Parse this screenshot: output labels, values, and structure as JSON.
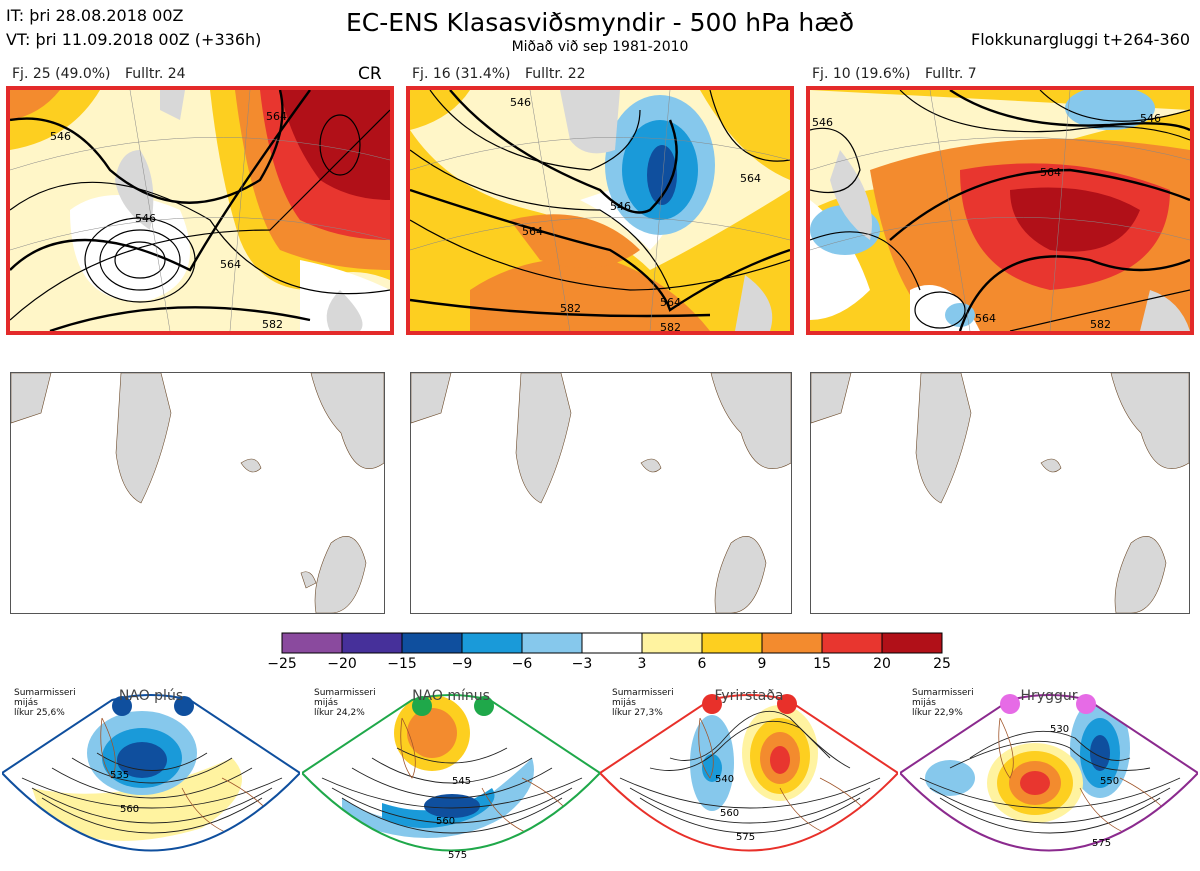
{
  "header": {
    "it": "IT: þri 28.08.2018 00Z",
    "vt": "VT: þri 11.09.2018 00Z  (+336h)",
    "title": "EC-ENS Klasasviðsmyndir - 500 hPa hæð",
    "subtitle": "Miðað við sep 1981-2010",
    "window": "Flokkunargluggi t+264-360"
  },
  "clusters": [
    {
      "fj": "Fj. 25 (49.0%)",
      "rep": "Fulltr. 24",
      "regime": "CR",
      "contours": [
        "546",
        "564",
        "546",
        "564",
        "582"
      ]
    },
    {
      "fj": "Fj. 16 (31.4%)",
      "rep": "Fulltr. 22",
      "regime": "",
      "contours": [
        "546",
        "564",
        "564",
        "582",
        "582",
        "546",
        "564"
      ]
    },
    {
      "fj": "Fj. 10 (19.6%)",
      "rep": "Fulltr. 7",
      "regime": "",
      "contours": [
        "546",
        "564",
        "546",
        "564",
        "582"
      ]
    }
  ],
  "colorbar": {
    "ticks": [
      "−25",
      "−20",
      "−15",
      "−9",
      "−6",
      "−3",
      "3",
      "6",
      "9",
      "15",
      "20",
      "25"
    ],
    "colors": [
      "#8a4a9e",
      "#46309a",
      "#0f4f9e",
      "#1a9ad9",
      "#86c8ec",
      "#ffffff",
      "#fff3a0",
      "#fdcf20",
      "#f38b2e",
      "#e8362f",
      "#b11018"
    ]
  },
  "regimes": [
    {
      "name": "NAO plús",
      "prob": [
        "Sumarmisseri",
        "mijás",
        "líkur 25,6%"
      ],
      "color": "#0f4f9e",
      "contours": [
        "535",
        "560"
      ]
    },
    {
      "name": "NAO mínus",
      "prob": [
        "Sumarmisseri",
        "mijás",
        "líkur 24,2%"
      ],
      "color": "#1fa84a",
      "contours": [
        "545",
        "560",
        "575"
      ]
    },
    {
      "name": "Fyrirstaða",
      "prob": [
        "Sumarmisseri",
        "mijás",
        "líkur 27,3%"
      ],
      "color": "#e8302a",
      "contours": [
        "540",
        "560",
        "575"
      ]
    },
    {
      "name": "Hryggur",
      "prob": [
        "Sumarmisseri",
        "mijás",
        "líkur 22,9%"
      ],
      "color": "#8b2a8e",
      "contours": [
        "530",
        "550",
        "575"
      ]
    }
  ]
}
